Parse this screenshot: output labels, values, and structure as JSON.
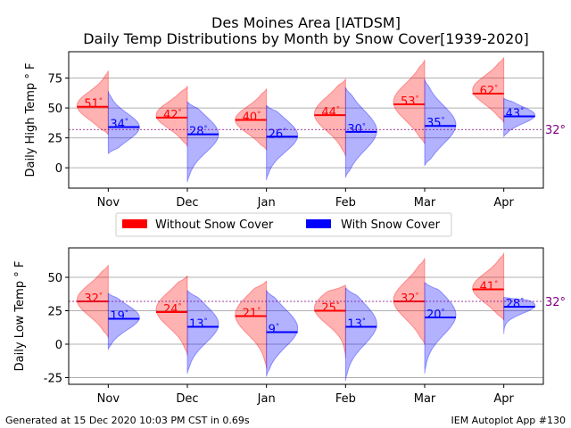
{
  "title_line1": "Des Moines Area [IATDSM]",
  "title_line2": "Daily Temp Distributions by Month by Snow Cover[1939-2020]",
  "footer_left": "Generated at 15 Dec 2020 10:03 PM CST in 0.69s",
  "footer_right": "IEM Autoplot App #130",
  "legend": [
    {
      "label": "Without Snow Cover",
      "color": "#ff0000"
    },
    {
      "label": "With Snow Cover",
      "color": "#0000ff"
    }
  ],
  "reference_label": "32°",
  "degree_suffix": "°",
  "reference_color": "#800080",
  "chart_data": [
    {
      "type": "violin",
      "ylabel": "Daily High Temp ° F",
      "ylim": [
        -17,
        97
      ],
      "yticks": [
        0,
        25,
        50,
        75
      ],
      "reference_line": 32,
      "categories": [
        "Nov",
        "Dec",
        "Jan",
        "Feb",
        "Mar",
        "Apr"
      ],
      "series": [
        {
          "name": "Without Snow Cover",
          "color": "#ff0000",
          "medians": [
            51,
            42,
            40,
            44,
            53,
            62
          ],
          "min": [
            28,
            18,
            15,
            10,
            20,
            38
          ],
          "max": [
            81,
            68,
            66,
            74,
            90,
            92
          ],
          "mode": [
            52,
            44,
            40,
            45,
            55,
            65
          ]
        },
        {
          "name": "With Snow Cover",
          "color": "#0000ff",
          "medians": [
            34,
            28,
            26,
            30,
            35,
            43
          ],
          "min": [
            12,
            -12,
            -10,
            -8,
            2,
            26
          ],
          "max": [
            64,
            55,
            52,
            67,
            74,
            58
          ],
          "mode": [
            34,
            28,
            27,
            31,
            36,
            44
          ]
        }
      ]
    },
    {
      "type": "violin",
      "ylabel": "Daily Low Temp ° F",
      "ylim": [
        -30,
        72
      ],
      "yticks": [
        -25,
        0,
        25,
        50
      ],
      "reference_line": 32,
      "categories": [
        "Nov",
        "Dec",
        "Jan",
        "Feb",
        "Mar",
        "Apr"
      ],
      "series": [
        {
          "name": "Without Snow Cover",
          "color": "#ff0000",
          "medians": [
            32,
            24,
            21,
            25,
            32,
            41
          ],
          "min": [
            5,
            -8,
            -18,
            -10,
            0,
            18
          ],
          "max": [
            59,
            51,
            47,
            44,
            64,
            68
          ],
          "mode": [
            33,
            26,
            22,
            27,
            33,
            42
          ]
        },
        {
          "name": "With Snow Cover",
          "color": "#0000ff",
          "medians": [
            19,
            13,
            9,
            13,
            20,
            28
          ],
          "min": [
            -4,
            -22,
            -24,
            -27,
            -22,
            8
          ],
          "max": [
            38,
            40,
            40,
            42,
            46,
            35
          ],
          "mode": [
            20,
            15,
            12,
            15,
            22,
            29
          ]
        }
      ]
    }
  ]
}
